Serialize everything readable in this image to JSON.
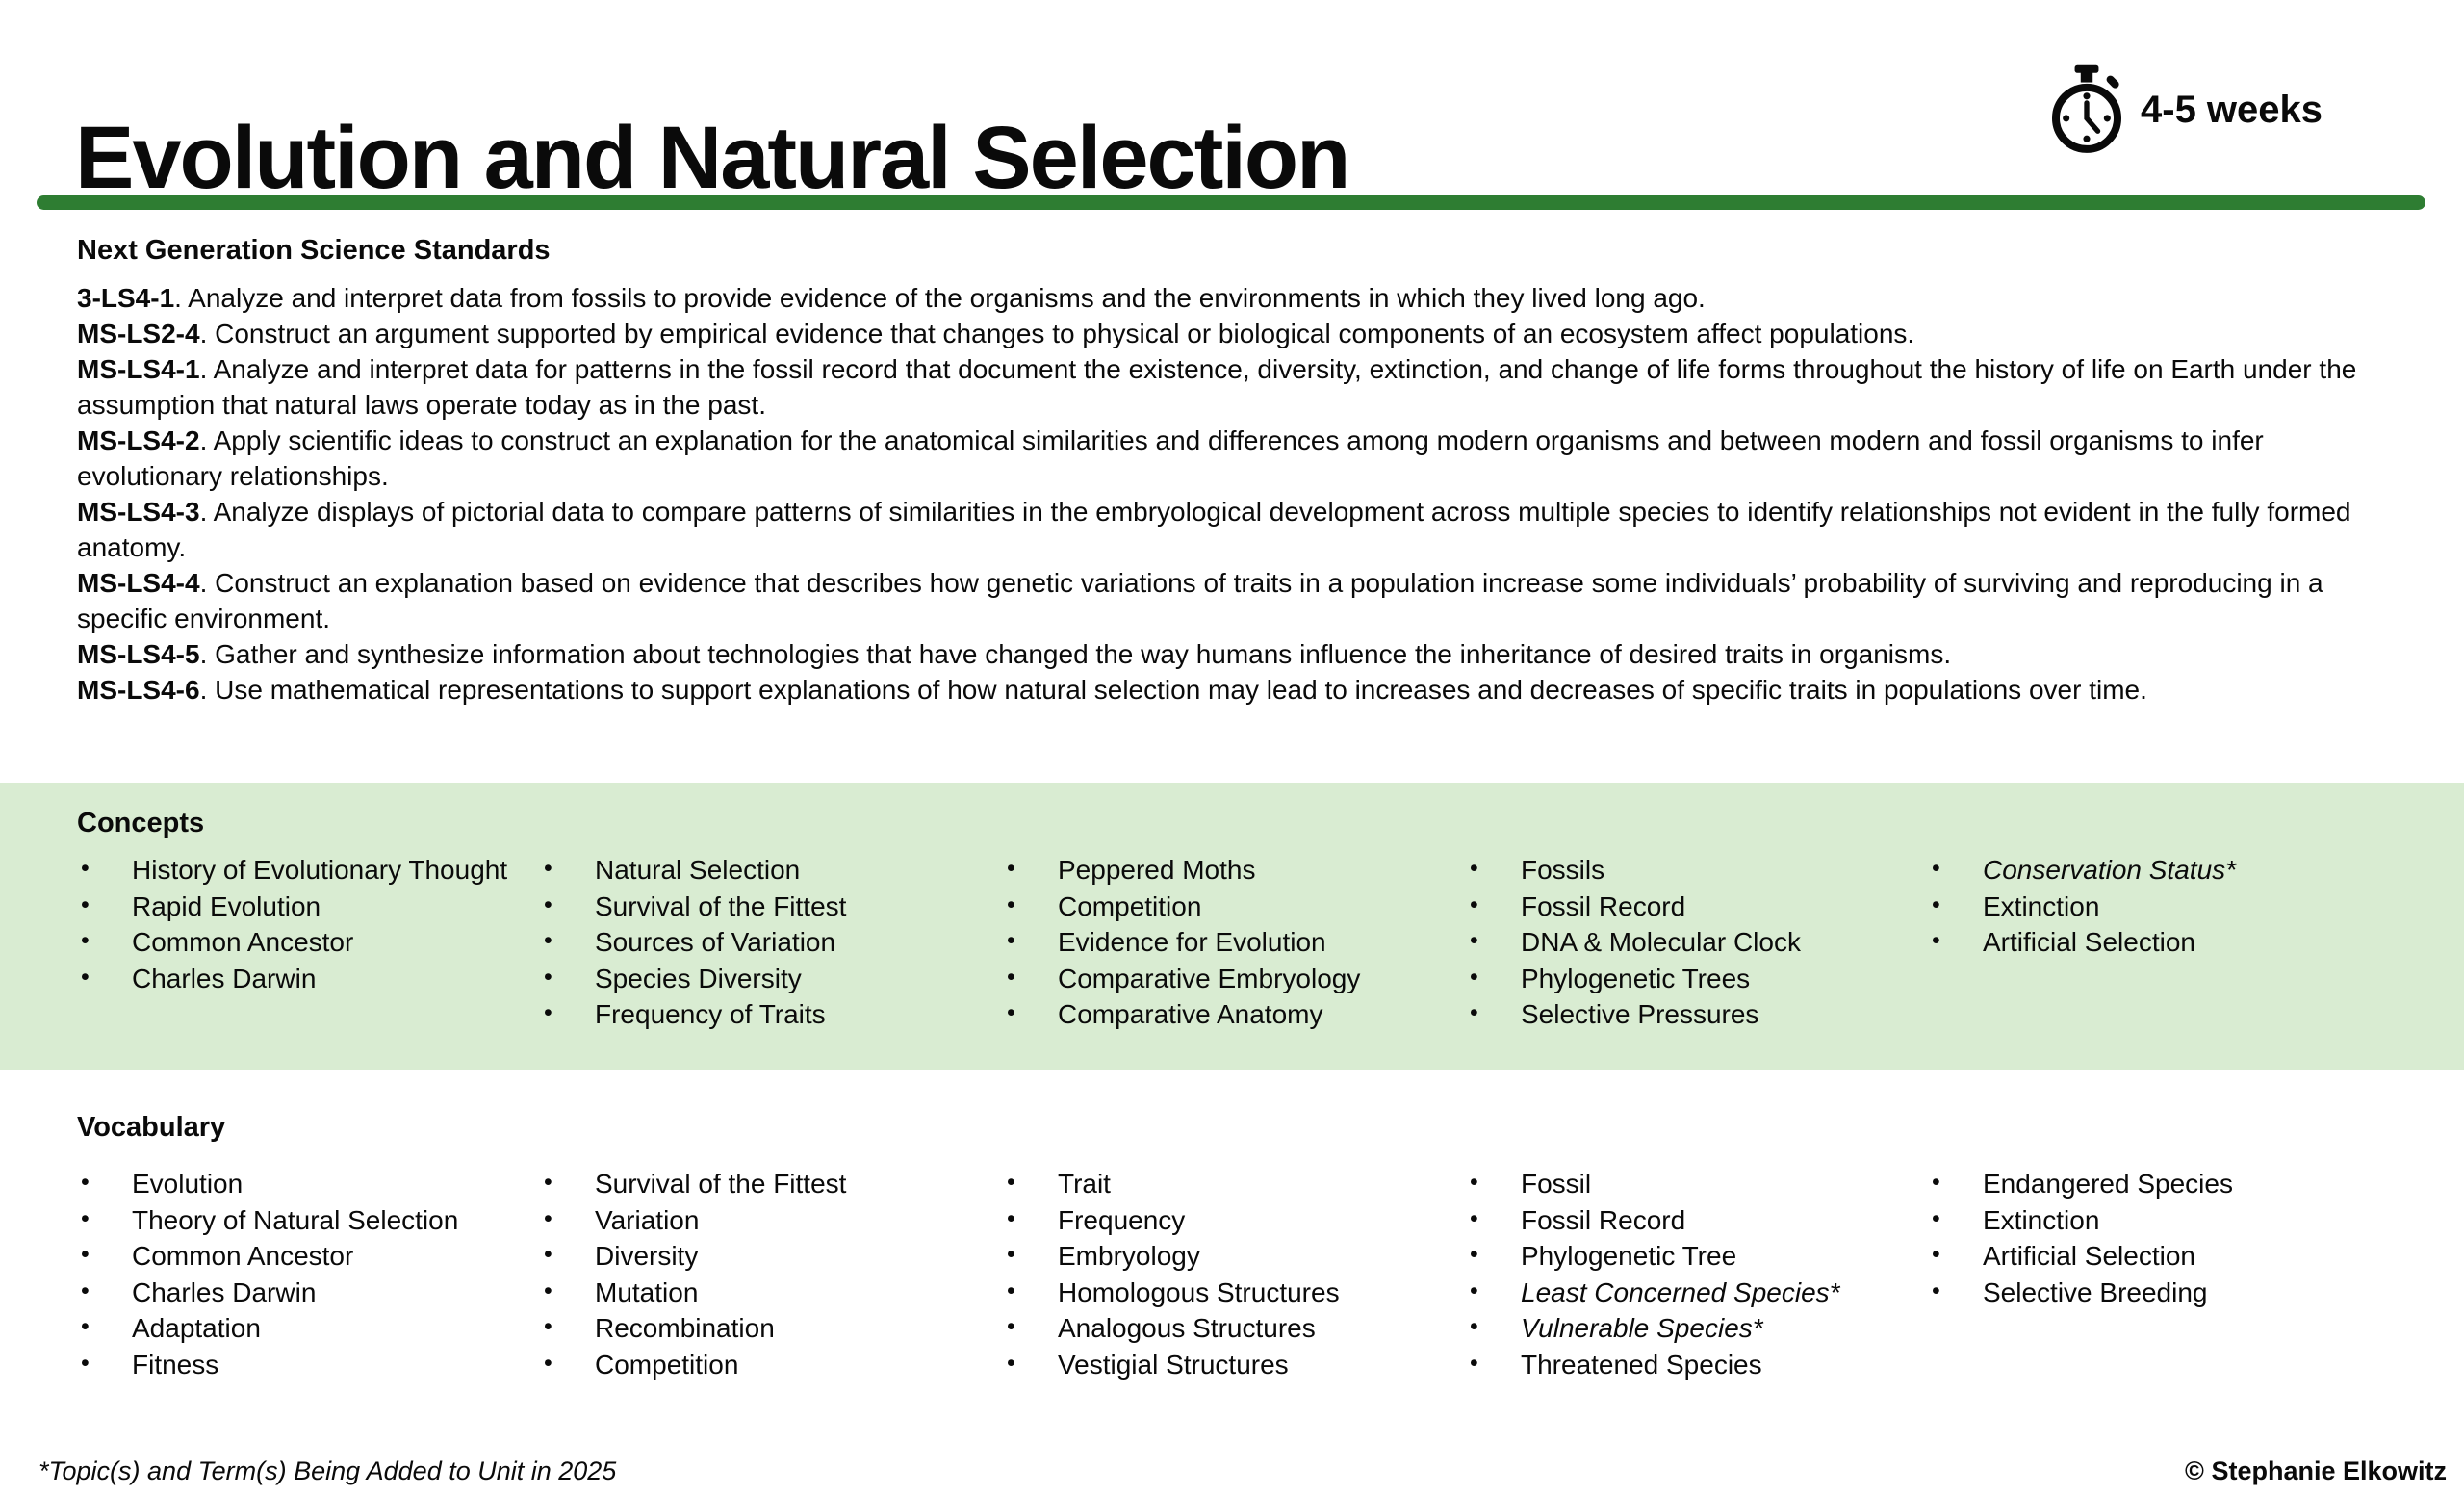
{
  "header": {
    "title": "Evolution and Natural Selection",
    "duration": "4-5 weeks",
    "duration_icon": "stopwatch-icon"
  },
  "colors": {
    "divider_green": "#2e7d32",
    "band_green": "#d9ecd2",
    "text": "#0a0a0a"
  },
  "standards_section": {
    "heading": "Next Generation Science Standards",
    "standards": [
      {
        "code": "3-LS4-1",
        "text": "Analyze and interpret data from fossils to provide evidence of the organisms and the environments in which they lived long ago."
      },
      {
        "code": "MS-LS2-4",
        "text": "Construct an argument supported by empirical evidence that changes to physical or biological components of an ecosystem affect populations."
      },
      {
        "code": "MS-LS4-1",
        "text": "Analyze and interpret data for patterns in the fossil record that document the existence, diversity, extinction, and change of life forms throughout the history of life on Earth under the assumption that natural laws operate today as in the past."
      },
      {
        "code": "MS-LS4-2",
        "text": "Apply scientific ideas to construct an explanation for the anatomical similarities and differences among modern organisms and between modern and fossil organisms to infer evolutionary relationships."
      },
      {
        "code": "MS-LS4-3",
        "text": "Analyze displays of pictorial data to compare patterns of similarities in the embryological development across multiple species to identify relationships not evident in the fully formed anatomy."
      },
      {
        "code": "MS-LS4-4",
        "text": "Construct an explanation based on evidence that describes how genetic variations of traits in a population increase some individuals’ probability of surviving and reproducing in a specific environment."
      },
      {
        "code": "MS-LS4-5",
        "text": "Gather and synthesize information about technologies that have changed the way humans influence the inheritance of desired traits in organisms."
      },
      {
        "code": "MS-LS4-6",
        "text": "Use mathematical representations to support explanations of how natural selection may lead to increases and decreases of specific traits in populations over time."
      }
    ]
  },
  "concepts_section": {
    "heading": "Concepts",
    "columns": [
      {
        "items": [
          {
            "text": "History of Evolutionary Thought"
          },
          {
            "text": "Rapid Evolution"
          },
          {
            "text": "Common Ancestor"
          },
          {
            "text": "Charles Darwin"
          }
        ]
      },
      {
        "items": [
          {
            "text": "Natural Selection"
          },
          {
            "text": "Survival of the Fittest"
          },
          {
            "text": "Sources of Variation"
          },
          {
            "text": "Species Diversity"
          },
          {
            "text": "Frequency of Traits"
          }
        ]
      },
      {
        "items": [
          {
            "text": "Peppered Moths"
          },
          {
            "text": "Competition"
          },
          {
            "text": "Evidence for Evolution"
          },
          {
            "text": "Comparative Embryology"
          },
          {
            "text": "Comparative Anatomy"
          }
        ]
      },
      {
        "items": [
          {
            "text": "Fossils"
          },
          {
            "text": "Fossil Record"
          },
          {
            "text": "DNA & Molecular Clock"
          },
          {
            "text": "Phylogenetic Trees"
          },
          {
            "text": "Selective Pressures"
          }
        ]
      },
      {
        "items": [
          {
            "text": "Conservation Status*",
            "italic": true
          },
          {
            "text": "Extinction"
          },
          {
            "text": "Artificial Selection"
          }
        ]
      }
    ]
  },
  "vocabulary_section": {
    "heading": "Vocabulary",
    "columns": [
      {
        "items": [
          {
            "text": "Evolution"
          },
          {
            "text": "Theory of Natural Selection"
          },
          {
            "text": "Common Ancestor"
          },
          {
            "text": "Charles Darwin"
          },
          {
            "text": "Adaptation"
          },
          {
            "text": "Fitness"
          }
        ]
      },
      {
        "items": [
          {
            "text": "Survival of the Fittest"
          },
          {
            "text": "Variation"
          },
          {
            "text": "Diversity"
          },
          {
            "text": "Mutation"
          },
          {
            "text": "Recombination"
          },
          {
            "text": "Competition"
          }
        ]
      },
      {
        "items": [
          {
            "text": "Trait"
          },
          {
            "text": "Frequency"
          },
          {
            "text": "Embryology"
          },
          {
            "text": "Homologous Structures"
          },
          {
            "text": "Analogous Structures"
          },
          {
            "text": "Vestigial Structures"
          }
        ]
      },
      {
        "items": [
          {
            "text": "Fossil"
          },
          {
            "text": "Fossil Record"
          },
          {
            "text": "Phylogenetic Tree"
          },
          {
            "text": "Least Concerned Species*",
            "italic": true
          },
          {
            "text": "Vulnerable Species*",
            "italic": true
          },
          {
            "text": "Threatened Species"
          }
        ]
      },
      {
        "items": [
          {
            "text": "Endangered Species"
          },
          {
            "text": "Extinction"
          },
          {
            "text": "Artificial Selection"
          },
          {
            "text": "Selective Breeding"
          }
        ]
      }
    ]
  },
  "footer": {
    "note": "*Topic(s) and Term(s) Being Added to Unit in 2025",
    "copyright": "© Stephanie Elkowitz"
  }
}
